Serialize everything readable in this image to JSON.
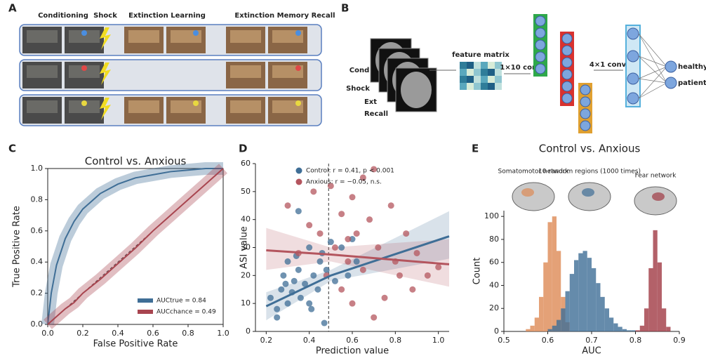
{
  "panel_a": {
    "letter": "A",
    "headers": [
      "Conditioning",
      "Shock",
      "Extinction Learning",
      "Extinction Memory Recall"
    ]
  },
  "panel_b": {
    "letter": "B",
    "input_labels": [
      "Cond",
      "Shock",
      "Ext",
      "Recall"
    ],
    "feature_label": "feature matrix",
    "conv1": "1×10 conv",
    "conv2": "4×1 conv",
    "outputs": [
      "healthy",
      "patient"
    ]
  },
  "chart_data": [
    {
      "type": "line",
      "label": "C",
      "title": "Control vs. Anxious",
      "xlabel": "False Positive Rate",
      "ylabel": "True Positive Rate",
      "xlim": [
        0,
        1
      ],
      "ylim": [
        0,
        1
      ],
      "xticks": [
        {
          "value": 0,
          "label": "0.0"
        },
        0.2,
        0.4,
        0.6,
        0.8,
        {
          "value": 1,
          "label": "1.0"
        }
      ],
      "yticks": [
        {
          "value": 0,
          "label": "0.0"
        },
        0.2,
        0.4,
        0.6,
        0.8,
        {
          "value": 1,
          "label": "1.0"
        }
      ],
      "legend": "lower right",
      "series": [
        {
          "name": "AUCtrue = 0.84",
          "color": "#3f6e96",
          "x": [
            0,
            0.02,
            0.05,
            0.1,
            0.15,
            0.2,
            0.3,
            0.4,
            0.5,
            0.6,
            0.7,
            0.8,
            0.9,
            1
          ],
          "values": [
            0,
            0.2,
            0.38,
            0.55,
            0.66,
            0.74,
            0.84,
            0.9,
            0.94,
            0.96,
            0.98,
            0.99,
            1,
            1
          ]
        },
        {
          "name": "AUCchance = 0.49",
          "color": "#a8454f",
          "x": [
            0,
            0.05,
            0.1,
            0.15,
            0.2,
            0.3,
            0.4,
            0.5,
            0.6,
            0.7,
            0.8,
            0.9,
            1
          ],
          "values": [
            0,
            0.05,
            0.1,
            0.14,
            0.2,
            0.29,
            0.39,
            0.49,
            0.6,
            0.7,
            0.8,
            0.9,
            1
          ]
        }
      ]
    },
    {
      "type": "scatter",
      "label": "D",
      "xlabel": "Prediction value",
      "ylabel": "ASI value",
      "xlim": [
        0.15,
        1.05
      ],
      "ylim": [
        0,
        60
      ],
      "xticks": [
        0.2,
        0.4,
        0.6,
        0.8,
        {
          "value": 1,
          "label": "1.0"
        }
      ],
      "yticks": [
        0,
        10,
        20,
        30,
        40,
        50,
        60
      ],
      "threshold_x": 0.49,
      "legend": "upper left",
      "series": [
        {
          "name": "Control: r = 0.41, p < 0.001",
          "color": "#3f6e96",
          "x": [
            0.22,
            0.25,
            0.27,
            0.28,
            0.3,
            0.3,
            0.32,
            0.33,
            0.35,
            0.36,
            0.38,
            0.4,
            0.41,
            0.42,
            0.44,
            0.45,
            0.46,
            0.48,
            0.5,
            0.52,
            0.55,
            0.58,
            0.6,
            0.62,
            0.25,
            0.35,
            0.4,
            0.34,
            0.29,
            0.47
          ],
          "values": [
            12,
            8,
            15,
            20,
            10,
            25,
            14,
            18,
            22,
            12,
            17,
            30,
            8,
            20,
            15,
            25,
            28,
            22,
            32,
            18,
            30,
            20,
            33,
            25,
            5,
            43,
            10,
            27,
            17,
            3
          ],
          "fit_x": [
            0.2,
            0.5,
            1.05
          ],
          "fit": [
            9,
            20,
            34
          ],
          "ci_lower": [
            4,
            18,
            26
          ],
          "ci_upper": [
            14,
            22,
            43
          ]
        },
        {
          "name": "Anxious: r = −0.05, n.s.",
          "color": "#b4555e",
          "x": [
            0.3,
            0.35,
            0.4,
            0.45,
            0.48,
            0.5,
            0.52,
            0.55,
            0.55,
            0.58,
            0.6,
            0.6,
            0.62,
            0.65,
            0.68,
            0.7,
            0.72,
            0.75,
            0.78,
            0.8,
            0.82,
            0.85,
            0.88,
            0.9,
            0.95,
            1,
            0.7,
            0.65,
            0.58,
            0.42
          ],
          "values": [
            45,
            28,
            38,
            35,
            20,
            52,
            30,
            42,
            15,
            25,
            48,
            10,
            35,
            22,
            40,
            58,
            30,
            12,
            45,
            25,
            20,
            35,
            15,
            28,
            20,
            23,
            5,
            55,
            33,
            50
          ],
          "fit_x": [
            0.2,
            0.5,
            1.05
          ],
          "fit": [
            29,
            27.5,
            24
          ],
          "ci_lower": [
            22,
            25,
            16
          ],
          "ci_upper": [
            37,
            30,
            33
          ]
        }
      ]
    },
    {
      "type": "histogram",
      "label": "E",
      "title": "Control vs. Anxious",
      "xlabel": "AUC",
      "ylabel": "Count",
      "xlim": [
        0.5,
        0.9
      ],
      "ylim": [
        0,
        105
      ],
      "xticks": [
        0.5,
        0.6,
        0.7,
        0.8,
        0.9
      ],
      "yticks": [
        0,
        20,
        40,
        60,
        80,
        100
      ],
      "series": [
        {
          "name": "Somatomotor network",
          "color": "#dd8a55",
          "bins": [
            0.55,
            0.56,
            0.57,
            0.58,
            0.59,
            0.6,
            0.61,
            0.62,
            0.63,
            0.64,
            0.65
          ],
          "values": [
            2,
            5,
            12,
            30,
            60,
            95,
            100,
            70,
            30,
            8
          ]
        },
        {
          "name": "10 random regions (1000 times)",
          "color": "#3f6e96",
          "bins": [
            0.6,
            0.61,
            0.62,
            0.63,
            0.64,
            0.65,
            0.66,
            0.67,
            0.68,
            0.69,
            0.7,
            0.71,
            0.72,
            0.73,
            0.74,
            0.75,
            0.76,
            0.77,
            0.78,
            0.79,
            0.8
          ],
          "values": [
            2,
            5,
            10,
            20,
            35,
            50,
            62,
            68,
            70,
            64,
            55,
            42,
            30,
            20,
            12,
            7,
            4,
            2,
            1,
            1
          ]
        },
        {
          "name": "Fear network",
          "color": "#a03a44",
          "bins": [
            0.8,
            0.81,
            0.82,
            0.83,
            0.84,
            0.85,
            0.86,
            0.87,
            0.88
          ],
          "values": [
            1,
            5,
            20,
            55,
            88,
            60,
            20,
            4
          ]
        }
      ]
    }
  ]
}
